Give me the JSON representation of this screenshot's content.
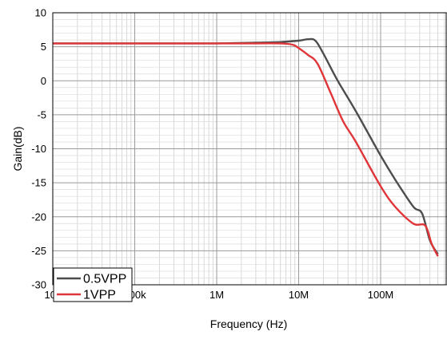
{
  "chart_data": {
    "type": "line",
    "xlabel": "Frequency (Hz)",
    "ylabel": "Gain(dB)",
    "x_scale": "log",
    "xlim": [
      10000,
      1000000000
    ],
    "ylim": [
      -30,
      10
    ],
    "grid": true,
    "legend_position": "bottom-left",
    "x_tick_values": [
      10000,
      100000,
      1000000,
      10000000,
      100000000
    ],
    "x_tick_labels": [
      "10k",
      "100k",
      "1M",
      "10M",
      "100M"
    ],
    "y_ticks": [
      10,
      5,
      0,
      -5,
      -10,
      -15,
      -20,
      -25,
      -30
    ],
    "series": [
      {
        "name": "0.5VPP",
        "color": "#4d4d4d",
        "x": [
          10000,
          100000,
          1000000,
          3000000,
          6000000,
          10000000,
          13000000,
          16000000,
          20000000,
          30000000,
          50000000,
          100000000,
          150000000,
          250000000,
          320000000,
          400000000,
          500000000
        ],
        "y": [
          5.5,
          5.5,
          5.5,
          5.6,
          5.7,
          5.9,
          6.1,
          5.9,
          4.0,
          0.0,
          -4.5,
          -11.0,
          -14.5,
          -18.5,
          -19.5,
          -23.5,
          -25.5
        ]
      },
      {
        "name": "1VPP",
        "color": "#e0363a",
        "x": [
          10000,
          100000,
          1000000,
          3000000,
          6000000,
          8500000,
          10000000,
          13000000,
          17000000,
          25000000,
          35000000,
          50000000,
          100000000,
          150000000,
          250000000,
          350000000,
          420000000,
          500000000
        ],
        "y": [
          5.5,
          5.5,
          5.5,
          5.5,
          5.5,
          5.3,
          4.8,
          3.8,
          2.5,
          -2.0,
          -6.0,
          -9.0,
          -15.5,
          -18.5,
          -21.0,
          -21.3,
          -24.0,
          -25.8
        ]
      }
    ]
  }
}
